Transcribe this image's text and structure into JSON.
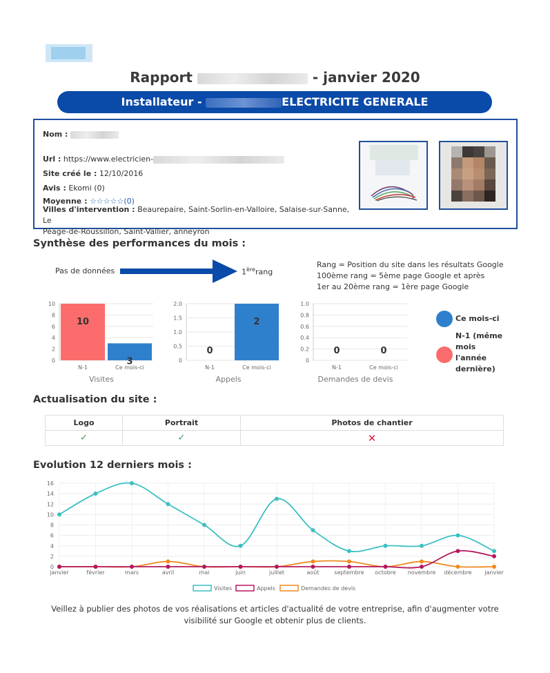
{
  "header": {
    "title_prefix": "Rapport",
    "title_suffix": "- janvier 2020",
    "banner_prefix": "Installateur -",
    "banner_suffix": "ELECTRICITE GENERALE"
  },
  "profile": {
    "nom_label": "Nom :",
    "url_label": "Url :",
    "url_value": "https://www.electricien-",
    "site_label": "Site créé le :",
    "site_value": "12/10/2016",
    "avis_label": "Avis :",
    "avis_value": "Ekomi (0)",
    "moyenne_label": "Moyenne :",
    "moyenne_stars": "☆☆☆☆☆",
    "moyenne_count": "(0)",
    "villes_label": "Villes d'intervention :",
    "villes_value_1": "Beaurepaire, Saint-Sorlin-en-Valloire, Salaise-sur-Sanne, Le",
    "villes_value_2": "Péage-de-Roussillon, Saint-Vallier, anneyron"
  },
  "synthese": {
    "title": "Synthèse des performances du mois :",
    "no_data": "Pas de données",
    "rank_value": "1",
    "rank_sup": "ère",
    "rank_label": "rang",
    "rank_note_1": "Rang = Position du site dans les résultats Google",
    "rank_note_2": "100ème rang = 5ème page Google et après",
    "rank_note_3": "1er au 20ème rang = 1ère page Google",
    "legend_current": "Ce mois-ci",
    "legend_prev_1": "N-1 (même",
    "legend_prev_2": "mois",
    "legend_prev_3": "l'année",
    "legend_prev_4": "dernière)"
  },
  "colors": {
    "accent": "#0a4aa8",
    "current": "#2f80cc",
    "previous": "#fb6c6c",
    "visites": "#3bbfc2",
    "appels": "#b5175d",
    "devis": "#ef8a1f"
  },
  "chart_data": [
    {
      "type": "bar",
      "title": "Visites",
      "categories": [
        "N-1",
        "Ce mois-ci"
      ],
      "values": [
        10,
        3
      ],
      "ylim": [
        0,
        10
      ],
      "yticks": [
        "0",
        "2",
        "4",
        "6",
        "8",
        "10"
      ]
    },
    {
      "type": "bar",
      "title": "Appels",
      "categories": [
        "N-1",
        "Ce mois-ci"
      ],
      "values": [
        0,
        2
      ],
      "ylim": [
        0,
        2
      ],
      "yticks": [
        "0",
        "0.5",
        "1.0",
        "1.5",
        "2.0"
      ]
    },
    {
      "type": "bar",
      "title": "Demandes de devis",
      "categories": [
        "N-1",
        "Ce mois-ci"
      ],
      "values": [
        0,
        0
      ],
      "ylim": [
        0,
        1
      ],
      "yticks": [
        "0",
        "0.2",
        "0.4",
        "0.6",
        "0.8",
        "1.0"
      ]
    },
    {
      "type": "line",
      "title": "Evolution 12 derniers mois :",
      "categories": [
        "janvier",
        "février",
        "mars",
        "avril",
        "mai",
        "juin",
        "juillet",
        "août",
        "septembre",
        "octobre",
        "novembre",
        "décembre",
        "janvier"
      ],
      "ylim": [
        0,
        16
      ],
      "yticks": [
        "0",
        "2",
        "4",
        "6",
        "8",
        "10",
        "12",
        "14",
        "16"
      ],
      "series": [
        {
          "name": "Visites",
          "values": [
            10,
            14,
            16,
            12,
            8,
            4,
            13,
            7,
            3,
            4,
            4,
            6,
            3
          ]
        },
        {
          "name": "Appels",
          "values": [
            0,
            0,
            0,
            0,
            0,
            0,
            0,
            0,
            0,
            0,
            0,
            3,
            2
          ]
        },
        {
          "name": "Demandes de devis",
          "values": [
            0,
            0,
            0,
            1,
            0,
            0,
            0,
            1,
            1,
            0,
            1,
            0,
            0
          ]
        }
      ]
    }
  ],
  "actualisation": {
    "title": "Actualisation du site :",
    "col_logo": "Logo",
    "col_portrait": "Portrait",
    "col_photos": "Photos de chantier",
    "val_logo": "✓",
    "val_portrait": "✓",
    "val_photos": "✕"
  },
  "footer": {
    "line1": "Veillez à publier des photos de vos réalisations et articles d'actualité de votre entreprise, afin d'augmenter votre",
    "line2": "visibilité sur Google et obtenir plus de clients."
  }
}
